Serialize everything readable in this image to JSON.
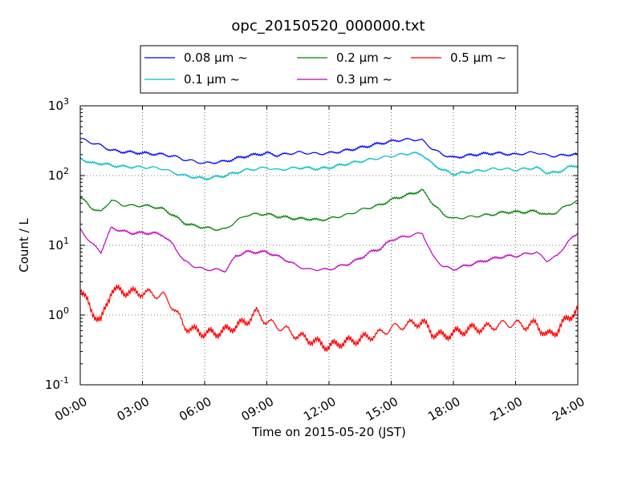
{
  "chart_data": {
    "type": "line",
    "title": "opc_20150520_000000.txt",
    "xlabel": "Time on 2015-05-20 (JST)",
    "ylabel": "Count / L",
    "yscale": "log",
    "xlim": [
      "00:00",
      "24:00"
    ],
    "ylim": [
      0.1,
      1000
    ],
    "grid": true,
    "legend_position": "top, outside plot",
    "x_tick_labels": [
      "00:00",
      "03:00",
      "06:00",
      "09:00",
      "12:00",
      "15:00",
      "18:00",
      "21:00",
      "24:00"
    ],
    "y_tick_labels": [
      {
        "base": "10",
        "exp": "-1"
      },
      {
        "base": "10",
        "exp": "0"
      },
      {
        "base": "10",
        "exp": "1"
      },
      {
        "base": "10",
        "exp": "2"
      },
      {
        "base": "10",
        "exp": "3"
      }
    ],
    "x": [
      "00:00",
      "00:30",
      "01:00",
      "01:30",
      "02:00",
      "02:30",
      "03:00",
      "03:30",
      "04:00",
      "04:30",
      "05:00",
      "05:30",
      "06:00",
      "06:30",
      "07:00",
      "07:30",
      "08:00",
      "08:30",
      "09:00",
      "09:30",
      "10:00",
      "10:30",
      "11:00",
      "11:30",
      "12:00",
      "12:30",
      "13:00",
      "13:30",
      "14:00",
      "14:30",
      "15:00",
      "15:30",
      "16:00",
      "16:30",
      "17:00",
      "17:30",
      "18:00",
      "18:30",
      "19:00",
      "19:30",
      "20:00",
      "20:30",
      "21:00",
      "21:30",
      "22:00",
      "22:30",
      "23:00",
      "23:30",
      "24:00"
    ],
    "series": [
      {
        "name": "0.08 μm ~",
        "color": "#0000ff",
        "values": [
          340,
          300,
          270,
          230,
          220,
          215,
          210,
          205,
          200,
          190,
          170,
          160,
          150,
          155,
          160,
          175,
          190,
          200,
          210,
          195,
          205,
          215,
          210,
          205,
          210,
          220,
          235,
          250,
          270,
          290,
          310,
          325,
          330,
          320,
          240,
          200,
          180,
          190,
          200,
          205,
          210,
          205,
          200,
          210,
          215,
          195,
          190,
          200,
          200
        ]
      },
      {
        "name": "0.1 μm ~",
        "color": "#00bfbf",
        "values": [
          180,
          150,
          150,
          140,
          135,
          133,
          132,
          130,
          125,
          110,
          100,
          95,
          90,
          95,
          100,
          110,
          120,
          125,
          130,
          120,
          125,
          130,
          128,
          125,
          130,
          140,
          150,
          160,
          170,
          180,
          190,
          200,
          210,
          200,
          145,
          120,
          105,
          110,
          115,
          120,
          125,
          125,
          120,
          125,
          130,
          110,
          110,
          130,
          140
        ]
      },
      {
        "name": "0.2 μm ~",
        "color": "#008000",
        "values": [
          50,
          35,
          30,
          45,
          38,
          37,
          37,
          36,
          33,
          27,
          21,
          19,
          18,
          17,
          17,
          22,
          27,
          28,
          28,
          26,
          25,
          24,
          24,
          23,
          24,
          26,
          28,
          32,
          35,
          38,
          45,
          50,
          55,
          62,
          40,
          28,
          24,
          25,
          26,
          27,
          28,
          30,
          30,
          30,
          31,
          27,
          30,
          38,
          43
        ]
      },
      {
        "name": "0.3 μm ~",
        "color": "#bf00bf",
        "values": [
          17,
          11,
          8,
          18,
          16,
          15,
          15,
          15,
          14,
          10,
          6,
          5,
          4.5,
          4.5,
          4.3,
          7,
          8,
          8,
          8,
          7,
          6,
          5,
          4.5,
          4.5,
          4.5,
          5,
          5.5,
          6.5,
          8,
          9,
          12,
          13,
          14,
          15,
          7,
          5,
          4.5,
          5,
          5.5,
          6,
          6.5,
          7,
          7,
          7.5,
          8,
          6,
          7,
          11,
          15
        ]
      },
      {
        "name": "0.5 μm ~",
        "color": "#ff0000",
        "values": [
          2.5,
          1.2,
          0.8,
          2.3,
          2.2,
          2.1,
          2.1,
          2.0,
          1.9,
          1.3,
          0.7,
          0.6,
          0.55,
          0.55,
          0.6,
          0.7,
          0.8,
          1.1,
          0.8,
          0.7,
          0.6,
          0.5,
          0.45,
          0.4,
          0.35,
          0.4,
          0.42,
          0.45,
          0.5,
          0.55,
          0.65,
          0.7,
          0.75,
          0.8,
          0.55,
          0.5,
          0.55,
          0.6,
          0.65,
          0.65,
          0.7,
          0.75,
          0.75,
          0.7,
          0.75,
          0.5,
          0.6,
          0.9,
          1.2
        ]
      }
    ]
  }
}
